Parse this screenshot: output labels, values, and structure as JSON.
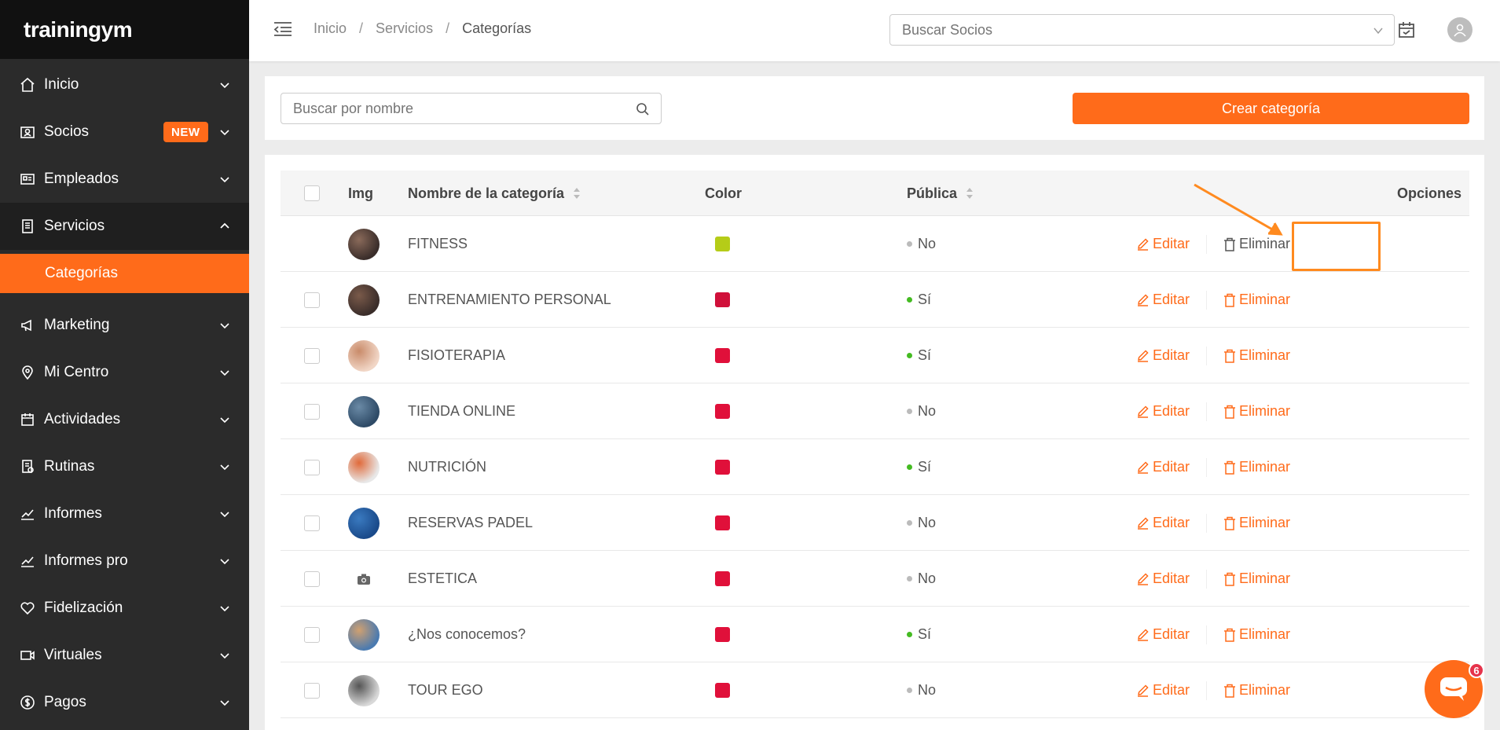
{
  "brand": "trainingym",
  "sidebar": {
    "items": [
      {
        "label": "Inicio",
        "icon": "home-icon"
      },
      {
        "label": "Socios",
        "icon": "members-icon",
        "badge": "NEW"
      },
      {
        "label": "Empleados",
        "icon": "id-card-icon"
      },
      {
        "label": "Servicios",
        "icon": "document-icon"
      },
      {
        "label": "Marketing",
        "icon": "megaphone-icon"
      },
      {
        "label": "Mi Centro",
        "icon": "location-pin-icon"
      },
      {
        "label": "Actividades",
        "icon": "calendar-icon"
      },
      {
        "label": "Rutinas",
        "icon": "routine-icon"
      },
      {
        "label": "Informes",
        "icon": "chart-line-icon"
      },
      {
        "label": "Informes pro",
        "icon": "chart-line-icon"
      },
      {
        "label": "Fidelización",
        "icon": "heart-icon"
      },
      {
        "label": "Virtuales",
        "icon": "video-icon"
      },
      {
        "label": "Pagos",
        "icon": "dollar-icon"
      }
    ],
    "sub_item": "Categorías"
  },
  "header": {
    "breadcrumb": [
      "Inicio",
      "Servicios",
      "Categorías"
    ],
    "member_search_placeholder": "Buscar Socios"
  },
  "toolbar": {
    "search_placeholder": "Buscar por nombre",
    "create_label": "Crear categoría"
  },
  "table": {
    "columns": {
      "img": "Img",
      "name": "Nombre de la categoría",
      "color": "Color",
      "public": "Pública",
      "options": "Opciones"
    },
    "edit_label": "Editar",
    "delete_label": "Eliminar",
    "rows": [
      {
        "name": "FITNESS",
        "color": "#b5cc18",
        "public": "No",
        "public_color": "#bbbbbb",
        "thumb": [
          "#3a2d2a",
          "#8a6a5a"
        ]
      },
      {
        "name": "ENTRENAMIENTO PERSONAL",
        "color": "#d0103a",
        "public": "Sí",
        "public_color": "#44bb22",
        "thumb": [
          "#3a2d2a",
          "#7a5a4a"
        ]
      },
      {
        "name": "FISIOTERAPIA",
        "color": "#e0103a",
        "public": "Sí",
        "public_color": "#44bb22",
        "thumb": [
          "#f1d6c6",
          "#c98b6a"
        ]
      },
      {
        "name": "TIENDA ONLINE",
        "color": "#e0103a",
        "public": "No",
        "public_color": "#bbbbbb",
        "thumb": [
          "#2e4a66",
          "#6a8aa6"
        ]
      },
      {
        "name": "NUTRICIÓN",
        "color": "#e0103a",
        "public": "Sí",
        "public_color": "#44bb22",
        "thumb": [
          "#e8e8e8",
          "#e06a3a"
        ]
      },
      {
        "name": "RESERVAS PADEL",
        "color": "#e0103a",
        "public": "No",
        "public_color": "#bbbbbb",
        "thumb": [
          "#1a4a8a",
          "#3a7ac0"
        ]
      },
      {
        "name": "ESTETICA",
        "color": "#e0103a",
        "public": "No",
        "public_color": "#bbbbbb",
        "thumb": null
      },
      {
        "name": "¿Nos conocemos?",
        "color": "#e0103a",
        "public": "Sí",
        "public_color": "#44bb22",
        "thumb": [
          "#4a7ab0",
          "#d0a070"
        ]
      },
      {
        "name": "TOUR EGO",
        "color": "#e0103a",
        "public": "No",
        "public_color": "#bbbbbb",
        "thumb": [
          "#d8d8d8",
          "#555555"
        ]
      }
    ]
  },
  "chat": {
    "badge": "6"
  },
  "colors": {
    "accent": "#ff6b1a",
    "sidebar_bg": "#2b2b2b"
  }
}
